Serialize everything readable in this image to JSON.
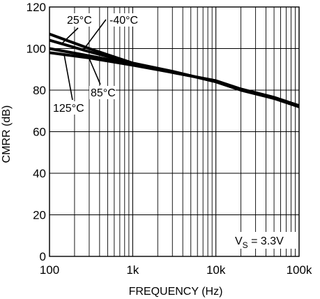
{
  "chart_data": {
    "type": "line",
    "title": "",
    "xlabel": "FREQUENCY (Hz)",
    "ylabel": "CMRR (dB)",
    "x_scale": "log",
    "xlim": [
      100,
      100000
    ],
    "ylim": [
      0,
      120
    ],
    "x_ticks": [
      {
        "value": 100,
        "label": "100"
      },
      {
        "value": 1000,
        "label": "1k"
      },
      {
        "value": 10000,
        "label": "10k"
      },
      {
        "value": 100000,
        "label": "100k"
      }
    ],
    "y_ticks": [
      {
        "value": 0,
        "label": "0"
      },
      {
        "value": 20,
        "label": "20"
      },
      {
        "value": 40,
        "label": "40"
      },
      {
        "value": 60,
        "label": "60"
      },
      {
        "value": 80,
        "label": "80"
      },
      {
        "value": 100,
        "label": "100"
      },
      {
        "value": 120,
        "label": "120"
      }
    ],
    "grid": true,
    "series": [
      {
        "name": "-40°C",
        "x": [
          100,
          300,
          1000,
          3000,
          10000,
          20000,
          50000,
          100000
        ],
        "y": [
          107,
          100,
          93,
          89,
          84,
          80,
          76,
          72
        ]
      },
      {
        "name": "25°C",
        "x": [
          100,
          300,
          1000,
          3000,
          10000,
          20000,
          50000,
          100000
        ],
        "y": [
          104,
          98.5,
          93,
          89,
          84,
          80,
          76,
          72
        ]
      },
      {
        "name": "85°C",
        "x": [
          100,
          300,
          1000,
          3000,
          10000,
          20000,
          50000,
          100000
        ],
        "y": [
          100,
          96.5,
          92.5,
          88.5,
          84.5,
          80.5,
          76.5,
          72.5
        ]
      },
      {
        "name": "125°C",
        "x": [
          100,
          300,
          1000,
          3000,
          10000,
          20000,
          50000,
          100000
        ],
        "y": [
          98,
          95.5,
          92,
          88.5,
          84.5,
          80.5,
          76.5,
          72.5
        ]
      }
    ],
    "annotations": [
      {
        "text": "25°C",
        "series": "25°C"
      },
      {
        "text": "-40°C",
        "series": "-40°C"
      },
      {
        "text": "85°C",
        "series": "85°C"
      },
      {
        "text": "125°C",
        "series": "125°C"
      }
    ],
    "condition_label": {
      "main": "V",
      "sub": "S",
      "rest": " = 3.3V"
    }
  }
}
